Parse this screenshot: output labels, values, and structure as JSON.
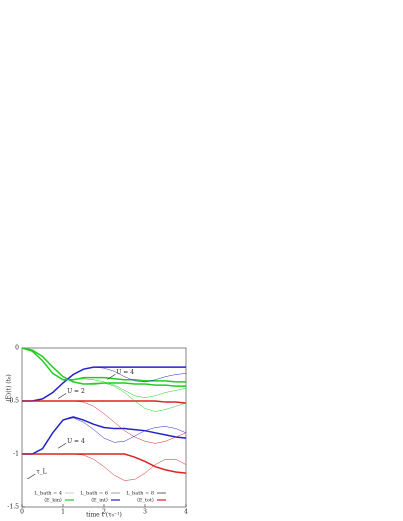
{
  "chart_data": {
    "type": "line",
    "x_label": "time t (τ₀⁻¹)",
    "y_label": "⟨E⟩(t) (t₀)",
    "xlim": [
      0,
      4
    ],
    "ylim": [
      -1.5,
      0
    ],
    "xticks": [
      0,
      1,
      2,
      3,
      4
    ],
    "yticks": [
      0,
      -0.5,
      -1,
      -1.5
    ],
    "x": [
      0,
      0.25,
      0.5,
      0.75,
      1,
      1.25,
      1.5,
      1.75,
      2,
      2.25,
      2.5,
      2.75,
      3,
      3.25,
      3.5,
      3.75,
      4
    ],
    "legend": [
      {
        "label": "L_bath = 4",
        "color": "#999999",
        "width": 0.5
      },
      {
        "label": "L_bath = 6",
        "color": "#999999",
        "width": 0.9
      },
      {
        "label": "L_bath = 8",
        "color": "#999999",
        "width": 1.5
      },
      {
        "label": "⟨E_kin⟩",
        "color": "#22cc22",
        "width": 1.2
      },
      {
        "label": "⟨E_int⟩",
        "color": "#2222cc",
        "width": 1.2
      },
      {
        "label": "⟨E_tot⟩",
        "color": "#dd2222",
        "width": 1.2
      }
    ],
    "series": [
      {
        "color": "#22cc22",
        "width": 1.5,
        "values": [
          0,
          -0.02,
          -0.08,
          -0.18,
          -0.27,
          -0.32,
          -0.34,
          -0.34,
          -0.33,
          -0.33,
          -0.33,
          -0.34,
          -0.34,
          -0.35,
          -0.35,
          -0.36,
          -0.36
        ]
      },
      {
        "color": "#2222cc",
        "width": 1.5,
        "values": [
          -0.5,
          -0.5,
          -0.48,
          -0.42,
          -0.33,
          -0.25,
          -0.2,
          -0.18,
          -0.18,
          -0.18,
          -0.18,
          -0.18,
          -0.18,
          -0.18,
          -0.18,
          -0.18,
          -0.18
        ]
      },
      {
        "color": "#dd2222",
        "width": 1.5,
        "values": [
          -0.5,
          -0.5,
          -0.5,
          -0.5,
          -0.5,
          -0.5,
          -0.5,
          -0.5,
          -0.5,
          -0.5,
          -0.5,
          -0.5,
          -0.5,
          -0.5,
          -0.51,
          -0.51,
          -0.52
        ]
      },
      {
        "color": "#22cc22",
        "width": 1.5,
        "values": [
          0,
          -0.03,
          -0.12,
          -0.24,
          -0.3,
          -0.3,
          -0.28,
          -0.28,
          -0.28,
          -0.29,
          -0.3,
          -0.3,
          -0.31,
          -0.31,
          -0.31,
          -0.32,
          -0.32
        ]
      },
      {
        "color": "#2222cc",
        "width": 1.5,
        "values": [
          -1,
          -1,
          -0.95,
          -0.8,
          -0.68,
          -0.65,
          -0.68,
          -0.72,
          -0.75,
          -0.76,
          -0.76,
          -0.77,
          -0.78,
          -0.8,
          -0.82,
          -0.84,
          -0.85
        ]
      },
      {
        "color": "#dd2222",
        "width": 1.5,
        "values": [
          -1,
          -1,
          -1,
          -1,
          -1,
          -1,
          -1,
          -1,
          -1,
          -1,
          -1,
          -1.03,
          -1.07,
          -1.12,
          -1.15,
          -1.17,
          -1.18
        ]
      },
      {
        "color": "#22cc22",
        "width": 0.5,
        "values": [
          0,
          -0.02,
          -0.08,
          -0.18,
          -0.27,
          -0.32,
          -0.34,
          -0.33,
          -0.33,
          -0.36,
          -0.42,
          -0.5,
          -0.57,
          -0.6,
          -0.58,
          -0.55,
          -0.52
        ]
      },
      {
        "color": "#2222cc",
        "width": 0.5,
        "values": [
          -0.5,
          -0.5,
          -0.48,
          -0.42,
          -0.33,
          -0.25,
          -0.2,
          -0.18,
          -0.19,
          -0.22,
          -0.27,
          -0.31,
          -0.32,
          -0.3,
          -0.27,
          -0.25,
          -0.24
        ]
      },
      {
        "color": "#dd2222",
        "width": 0.5,
        "values": [
          -0.5,
          -0.5,
          -0.5,
          -0.5,
          -0.5,
          -0.5,
          -0.51,
          -0.55,
          -0.62,
          -0.7,
          -0.78,
          -0.84,
          -0.88,
          -0.9,
          -0.88,
          -0.84,
          -0.8
        ]
      },
      {
        "color": "#22cc22",
        "width": 0.5,
        "values": [
          0,
          -0.03,
          -0.12,
          -0.24,
          -0.3,
          -0.3,
          -0.29,
          -0.3,
          -0.32,
          -0.35,
          -0.4,
          -0.45,
          -0.47,
          -0.45,
          -0.42,
          -0.4,
          -0.38
        ]
      },
      {
        "color": "#2222cc",
        "width": 0.5,
        "values": [
          -1,
          -1,
          -0.95,
          -0.8,
          -0.68,
          -0.66,
          -0.7,
          -0.77,
          -0.85,
          -0.89,
          -0.88,
          -0.83,
          -0.78,
          -0.75,
          -0.74,
          -0.76,
          -0.8
        ]
      },
      {
        "color": "#dd2222",
        "width": 0.5,
        "values": [
          -1,
          -1,
          -1,
          -1,
          -1,
          -1,
          -1.01,
          -1.05,
          -1.12,
          -1.2,
          -1.25,
          -1.24,
          -1.18,
          -1.1,
          -1.05,
          -1.05,
          -1.1
        ]
      }
    ],
    "annotations": [
      {
        "text": "U = 4",
        "x": 2.3,
        "y": -0.23
      },
      {
        "text": "U = 2",
        "x": 1.1,
        "y": -0.41
      },
      {
        "text": "U = 4",
        "x": 1.1,
        "y": -0.88
      },
      {
        "text": "τ_L",
        "x": 0.35,
        "y": -1.17
      }
    ]
  }
}
